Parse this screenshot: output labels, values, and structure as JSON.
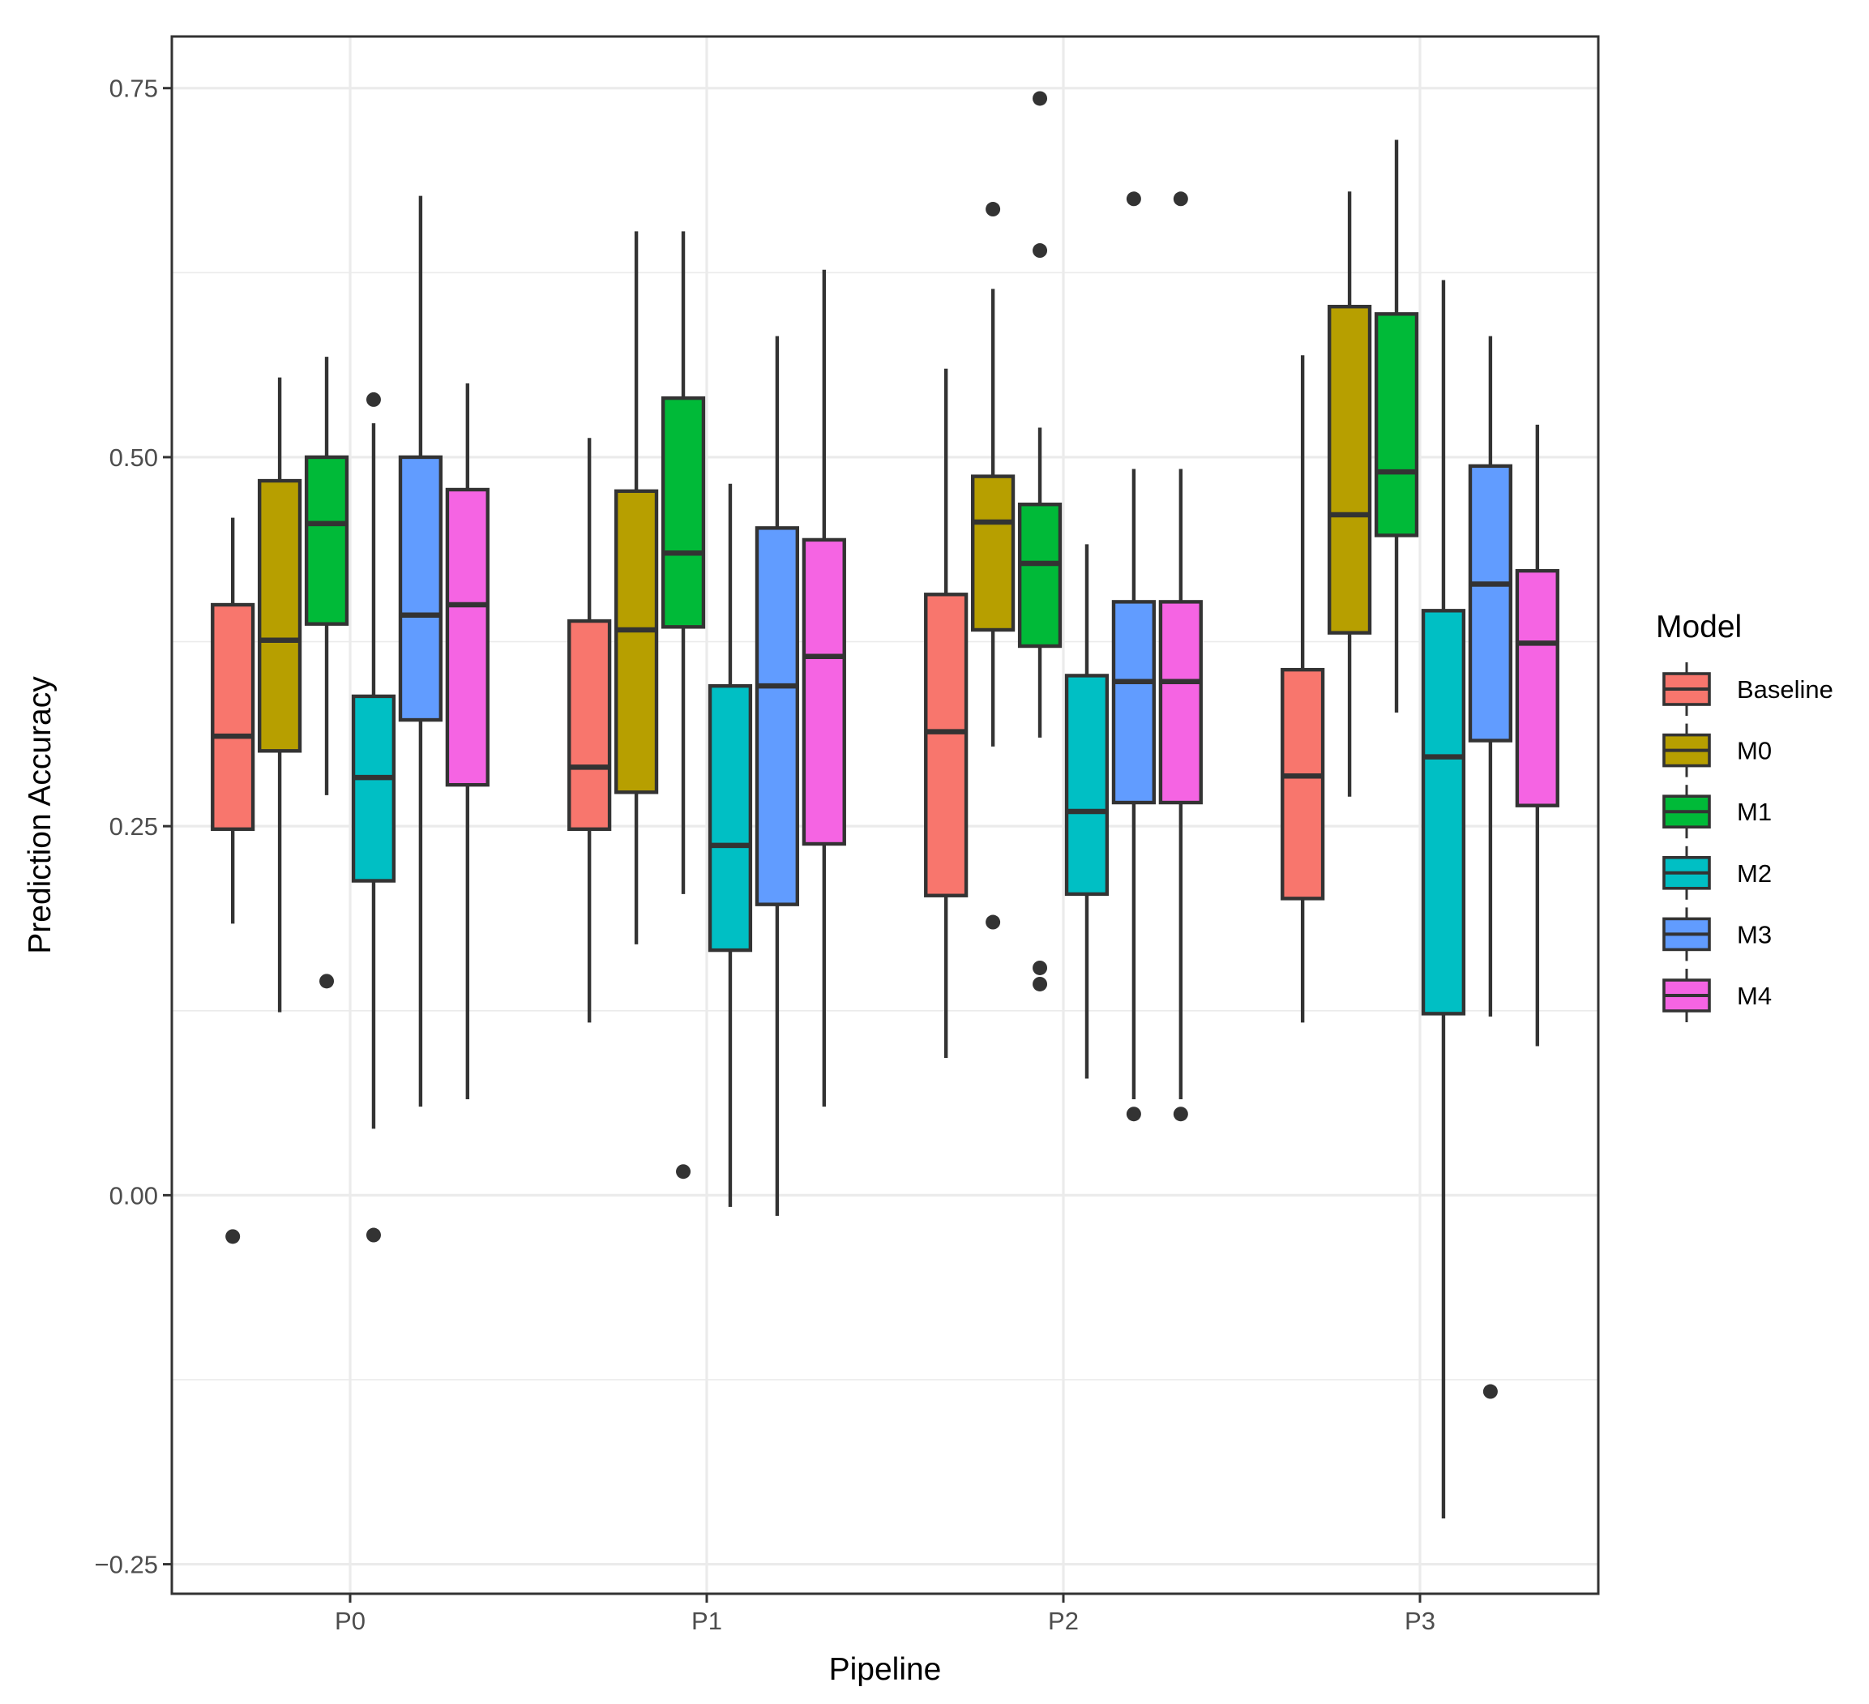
{
  "chart_data": {
    "type": "boxplot",
    "xlabel": "Pipeline",
    "ylabel": "Prediction Accuracy",
    "ylim": [
      -0.27,
      0.785
    ],
    "y_ticks": [
      -0.25,
      0.0,
      0.25,
      0.5,
      0.75
    ],
    "y_tick_labels": [
      "−0.25",
      "0.00",
      "0.25",
      "0.50",
      "0.75"
    ],
    "y_minor_ticks": [
      -0.125,
      0.125,
      0.375,
      0.625
    ],
    "categories": [
      "P0",
      "P1",
      "P2",
      "P3"
    ],
    "grid": true,
    "legend": {
      "title": "Model",
      "position": "right"
    },
    "series": [
      {
        "name": "Baseline",
        "color": "#F8766D",
        "boxes": [
          {
            "category": "P0",
            "whisker_low": 0.184,
            "q1": 0.248,
            "median": 0.311,
            "q3": 0.4,
            "whisker_high": 0.459,
            "outliers": [
              -0.028
            ]
          },
          {
            "category": "P1",
            "whisker_low": 0.117,
            "q1": 0.248,
            "median": 0.29,
            "q3": 0.389,
            "whisker_high": 0.513,
            "outliers": []
          },
          {
            "category": "P2",
            "whisker_low": 0.093,
            "q1": 0.203,
            "median": 0.314,
            "q3": 0.407,
            "whisker_high": 0.56,
            "outliers": []
          },
          {
            "category": "P3",
            "whisker_low": 0.117,
            "q1": 0.201,
            "median": 0.284,
            "q3": 0.356,
            "whisker_high": 0.569,
            "outliers": []
          }
        ]
      },
      {
        "name": "M0",
        "color": "#B79F00",
        "boxes": [
          {
            "category": "P0",
            "whisker_low": 0.124,
            "q1": 0.301,
            "median": 0.376,
            "q3": 0.484,
            "whisker_high": 0.554,
            "outliers": []
          },
          {
            "category": "P1",
            "whisker_low": 0.17,
            "q1": 0.273,
            "median": 0.383,
            "q3": 0.477,
            "whisker_high": 0.653,
            "outliers": []
          },
          {
            "category": "P2",
            "whisker_low": 0.304,
            "q1": 0.383,
            "median": 0.456,
            "q3": 0.487,
            "whisker_high": 0.614,
            "outliers": [
              0.185,
              0.668
            ]
          },
          {
            "category": "P3",
            "whisker_low": 0.27,
            "q1": 0.381,
            "median": 0.461,
            "q3": 0.602,
            "whisker_high": 0.68,
            "outliers": []
          }
        ]
      },
      {
        "name": "M1",
        "color": "#00BA38",
        "boxes": [
          {
            "category": "P0",
            "whisker_low": 0.271,
            "q1": 0.387,
            "median": 0.455,
            "q3": 0.5,
            "whisker_high": 0.568,
            "outliers": [
              0.145
            ]
          },
          {
            "category": "P1",
            "whisker_low": 0.204,
            "q1": 0.385,
            "median": 0.435,
            "q3": 0.54,
            "whisker_high": 0.653,
            "outliers": [
              0.016
            ]
          },
          {
            "category": "P2",
            "whisker_low": 0.31,
            "q1": 0.372,
            "median": 0.428,
            "q3": 0.468,
            "whisker_high": 0.52,
            "outliers": [
              0.143,
              0.154,
              0.64,
              0.743
            ]
          },
          {
            "category": "P3",
            "whisker_low": 0.327,
            "q1": 0.447,
            "median": 0.49,
            "q3": 0.597,
            "whisker_high": 0.715,
            "outliers": []
          }
        ]
      },
      {
        "name": "M2",
        "color": "#00BFC4",
        "boxes": [
          {
            "category": "P0",
            "whisker_low": 0.045,
            "q1": 0.213,
            "median": 0.283,
            "q3": 0.338,
            "whisker_high": 0.523,
            "outliers": [
              -0.027,
              0.539
            ]
          },
          {
            "category": "P1",
            "whisker_low": -0.008,
            "q1": 0.166,
            "median": 0.237,
            "q3": 0.345,
            "whisker_high": 0.482,
            "outliers": []
          },
          {
            "category": "P2",
            "whisker_low": 0.079,
            "q1": 0.204,
            "median": 0.26,
            "q3": 0.352,
            "whisker_high": 0.441,
            "outliers": []
          },
          {
            "category": "P3",
            "whisker_low": -0.219,
            "q1": 0.123,
            "median": 0.297,
            "q3": 0.396,
            "whisker_high": 0.62,
            "outliers": []
          }
        ]
      },
      {
        "name": "M3",
        "color": "#619CFF",
        "boxes": [
          {
            "category": "P0",
            "whisker_low": 0.06,
            "q1": 0.322,
            "median": 0.393,
            "q3": 0.5,
            "whisker_high": 0.677,
            "outliers": []
          },
          {
            "category": "P1",
            "whisker_low": -0.014,
            "q1": 0.197,
            "median": 0.345,
            "q3": 0.452,
            "whisker_high": 0.582,
            "outliers": []
          },
          {
            "category": "P2",
            "whisker_low": 0.065,
            "q1": 0.266,
            "median": 0.348,
            "q3": 0.402,
            "whisker_high": 0.492,
            "outliers": [
              0.055,
              0.675
            ]
          },
          {
            "category": "P3",
            "whisker_low": 0.121,
            "q1": 0.308,
            "median": 0.414,
            "q3": 0.494,
            "whisker_high": 0.582,
            "outliers": [
              -0.133
            ]
          }
        ]
      },
      {
        "name": "M4",
        "color": "#F564E3",
        "boxes": [
          {
            "category": "P0",
            "whisker_low": 0.065,
            "q1": 0.278,
            "median": 0.4,
            "q3": 0.478,
            "whisker_high": 0.55,
            "outliers": []
          },
          {
            "category": "P1",
            "whisker_low": 0.06,
            "q1": 0.238,
            "median": 0.365,
            "q3": 0.444,
            "whisker_high": 0.627,
            "outliers": []
          },
          {
            "category": "P2",
            "whisker_low": 0.065,
            "q1": 0.266,
            "median": 0.348,
            "q3": 0.402,
            "whisker_high": 0.492,
            "outliers": [
              0.055,
              0.675
            ]
          },
          {
            "category": "P3",
            "whisker_low": 0.101,
            "q1": 0.264,
            "median": 0.374,
            "q3": 0.423,
            "whisker_high": 0.522,
            "outliers": []
          }
        ]
      }
    ]
  }
}
